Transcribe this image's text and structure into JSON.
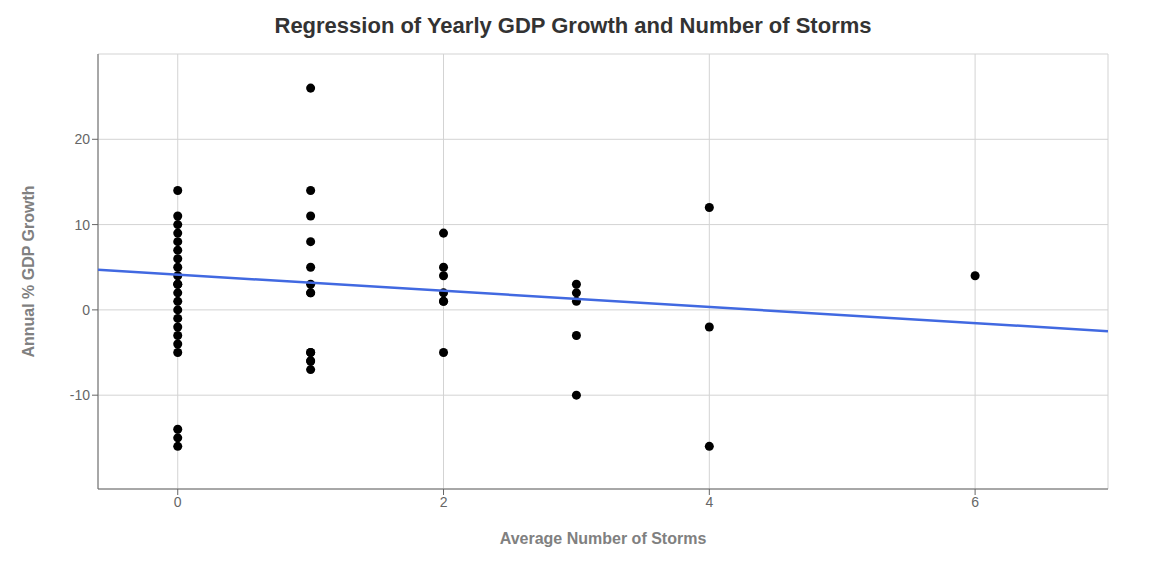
{
  "chart_data": {
    "type": "scatter",
    "title": "Regression of Yearly GDP Growth and Number of Storms",
    "x_label": "Average Number of Storms",
    "y_label": "Annual % GDP Growth",
    "xlim": [
      -0.6,
      7.0
    ],
    "ylim": [
      -21,
      30
    ],
    "xticks": [
      0,
      2,
      4,
      6
    ],
    "yticks": [
      -10,
      0,
      10,
      20
    ],
    "grid": true,
    "series": [
      {
        "type": "scatter",
        "color": "#000000",
        "x": [
          0,
          0,
          0,
          0,
          0,
          0,
          0,
          0,
          0,
          0,
          0,
          0,
          0,
          0,
          0,
          0,
          0,
          0,
          0,
          0,
          0,
          0,
          1,
          1,
          1,
          1,
          1,
          1,
          1,
          1,
          1,
          1,
          1,
          1,
          1,
          2,
          2,
          2,
          2,
          2,
          2,
          2,
          3,
          3,
          3,
          3,
          3,
          4,
          4,
          4,
          6
        ],
        "values": [
          14,
          11,
          10,
          9,
          8,
          7,
          6,
          5,
          4,
          3,
          3,
          2,
          1,
          0,
          -1,
          -2,
          -3,
          -4,
          -5,
          -14,
          -15,
          -16,
          26,
          14,
          11,
          8,
          5,
          3,
          2,
          2,
          -5,
          -5,
          -6,
          -6,
          -7,
          9,
          5,
          4,
          2,
          1,
          1,
          -5,
          3,
          2,
          1,
          -3,
          -10,
          12,
          -2,
          -16,
          4
        ]
      },
      {
        "type": "line",
        "color": "#4169E1",
        "x": [
          -0.6,
          7.0
        ],
        "values": [
          4.7,
          -2.5
        ]
      }
    ]
  }
}
